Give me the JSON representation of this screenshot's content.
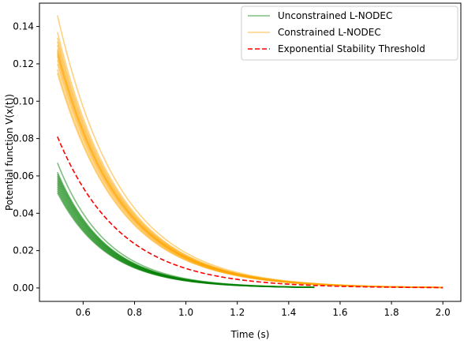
{
  "chart_data": {
    "type": "line",
    "xlabel": "Time (s)",
    "ylabel": "Potential function V(x(t))",
    "xlim": [
      0.43,
      2.07
    ],
    "ylim": [
      -0.0072,
      0.1525
    ],
    "xticks": [
      0.6,
      0.8,
      1.0,
      1.2,
      1.4,
      1.6,
      1.8,
      2.0
    ],
    "xtick_labels": [
      "0.6",
      "0.8",
      "1.0",
      "1.2",
      "1.4",
      "1.6",
      "1.8",
      "2.0"
    ],
    "yticks": [
      0.0,
      0.02,
      0.04,
      0.06,
      0.08,
      0.1,
      0.12,
      0.14
    ],
    "ytick_labels": [
      "0.00",
      "0.02",
      "0.04",
      "0.06",
      "0.08",
      "0.10",
      "0.12",
      "0.14"
    ],
    "grid": false,
    "legend_position": "top-right",
    "series": [
      {
        "name": "Unconstrained L-NODEC",
        "color": "#008000",
        "style": "solid",
        "alpha": 0.5,
        "t_start": 0.5,
        "t_end": 1.5,
        "decay_rate": 5.2,
        "initial_values": [
          0.067,
          0.062,
          0.061,
          0.06,
          0.059,
          0.058,
          0.057,
          0.056,
          0.055,
          0.054,
          0.053,
          0.052,
          0.051
        ]
      },
      {
        "name": "Constrained L-NODEC",
        "color": "#FFA500",
        "style": "solid",
        "alpha": 0.5,
        "t_start": 0.5,
        "t_end": 2.0,
        "decay_rate": 4.1,
        "initial_values": [
          0.146,
          0.137,
          0.134,
          0.132,
          0.13,
          0.128,
          0.127,
          0.126,
          0.125,
          0.124,
          0.122,
          0.12,
          0.117,
          0.115
        ]
      },
      {
        "name": "Exponential Stability Threshold",
        "color": "#FF0000",
        "style": "dashed",
        "t_start": 0.5,
        "t_end": 2.0,
        "decay_rate": 4.1,
        "initial_value": 0.081
      }
    ]
  }
}
